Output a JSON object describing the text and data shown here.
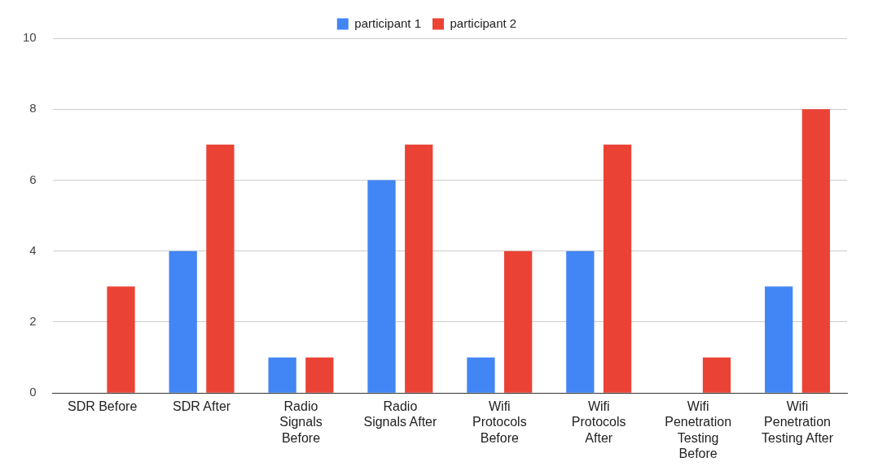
{
  "chart_data": {
    "type": "bar",
    "categories": [
      "SDR Before",
      "SDR After",
      "Radio Signals Before",
      "Radio Signals After",
      "Wifi Protocols Before",
      "Wifi Protocols After",
      "Wifi Penetration Testing Before",
      "Wifi Penetration Testing After"
    ],
    "series": [
      {
        "name": "participant 1",
        "color": "#4285f4",
        "values": [
          0,
          4,
          1,
          6,
          1,
          4,
          0,
          3
        ]
      },
      {
        "name": "participant 2",
        "color": "#ea4335",
        "values": [
          3,
          7,
          1,
          7,
          4,
          7,
          1,
          8
        ]
      }
    ],
    "ylim": [
      0,
      10
    ],
    "yticks": [
      0,
      2,
      4,
      6,
      8,
      10
    ],
    "grid": "y",
    "legend": "top"
  }
}
